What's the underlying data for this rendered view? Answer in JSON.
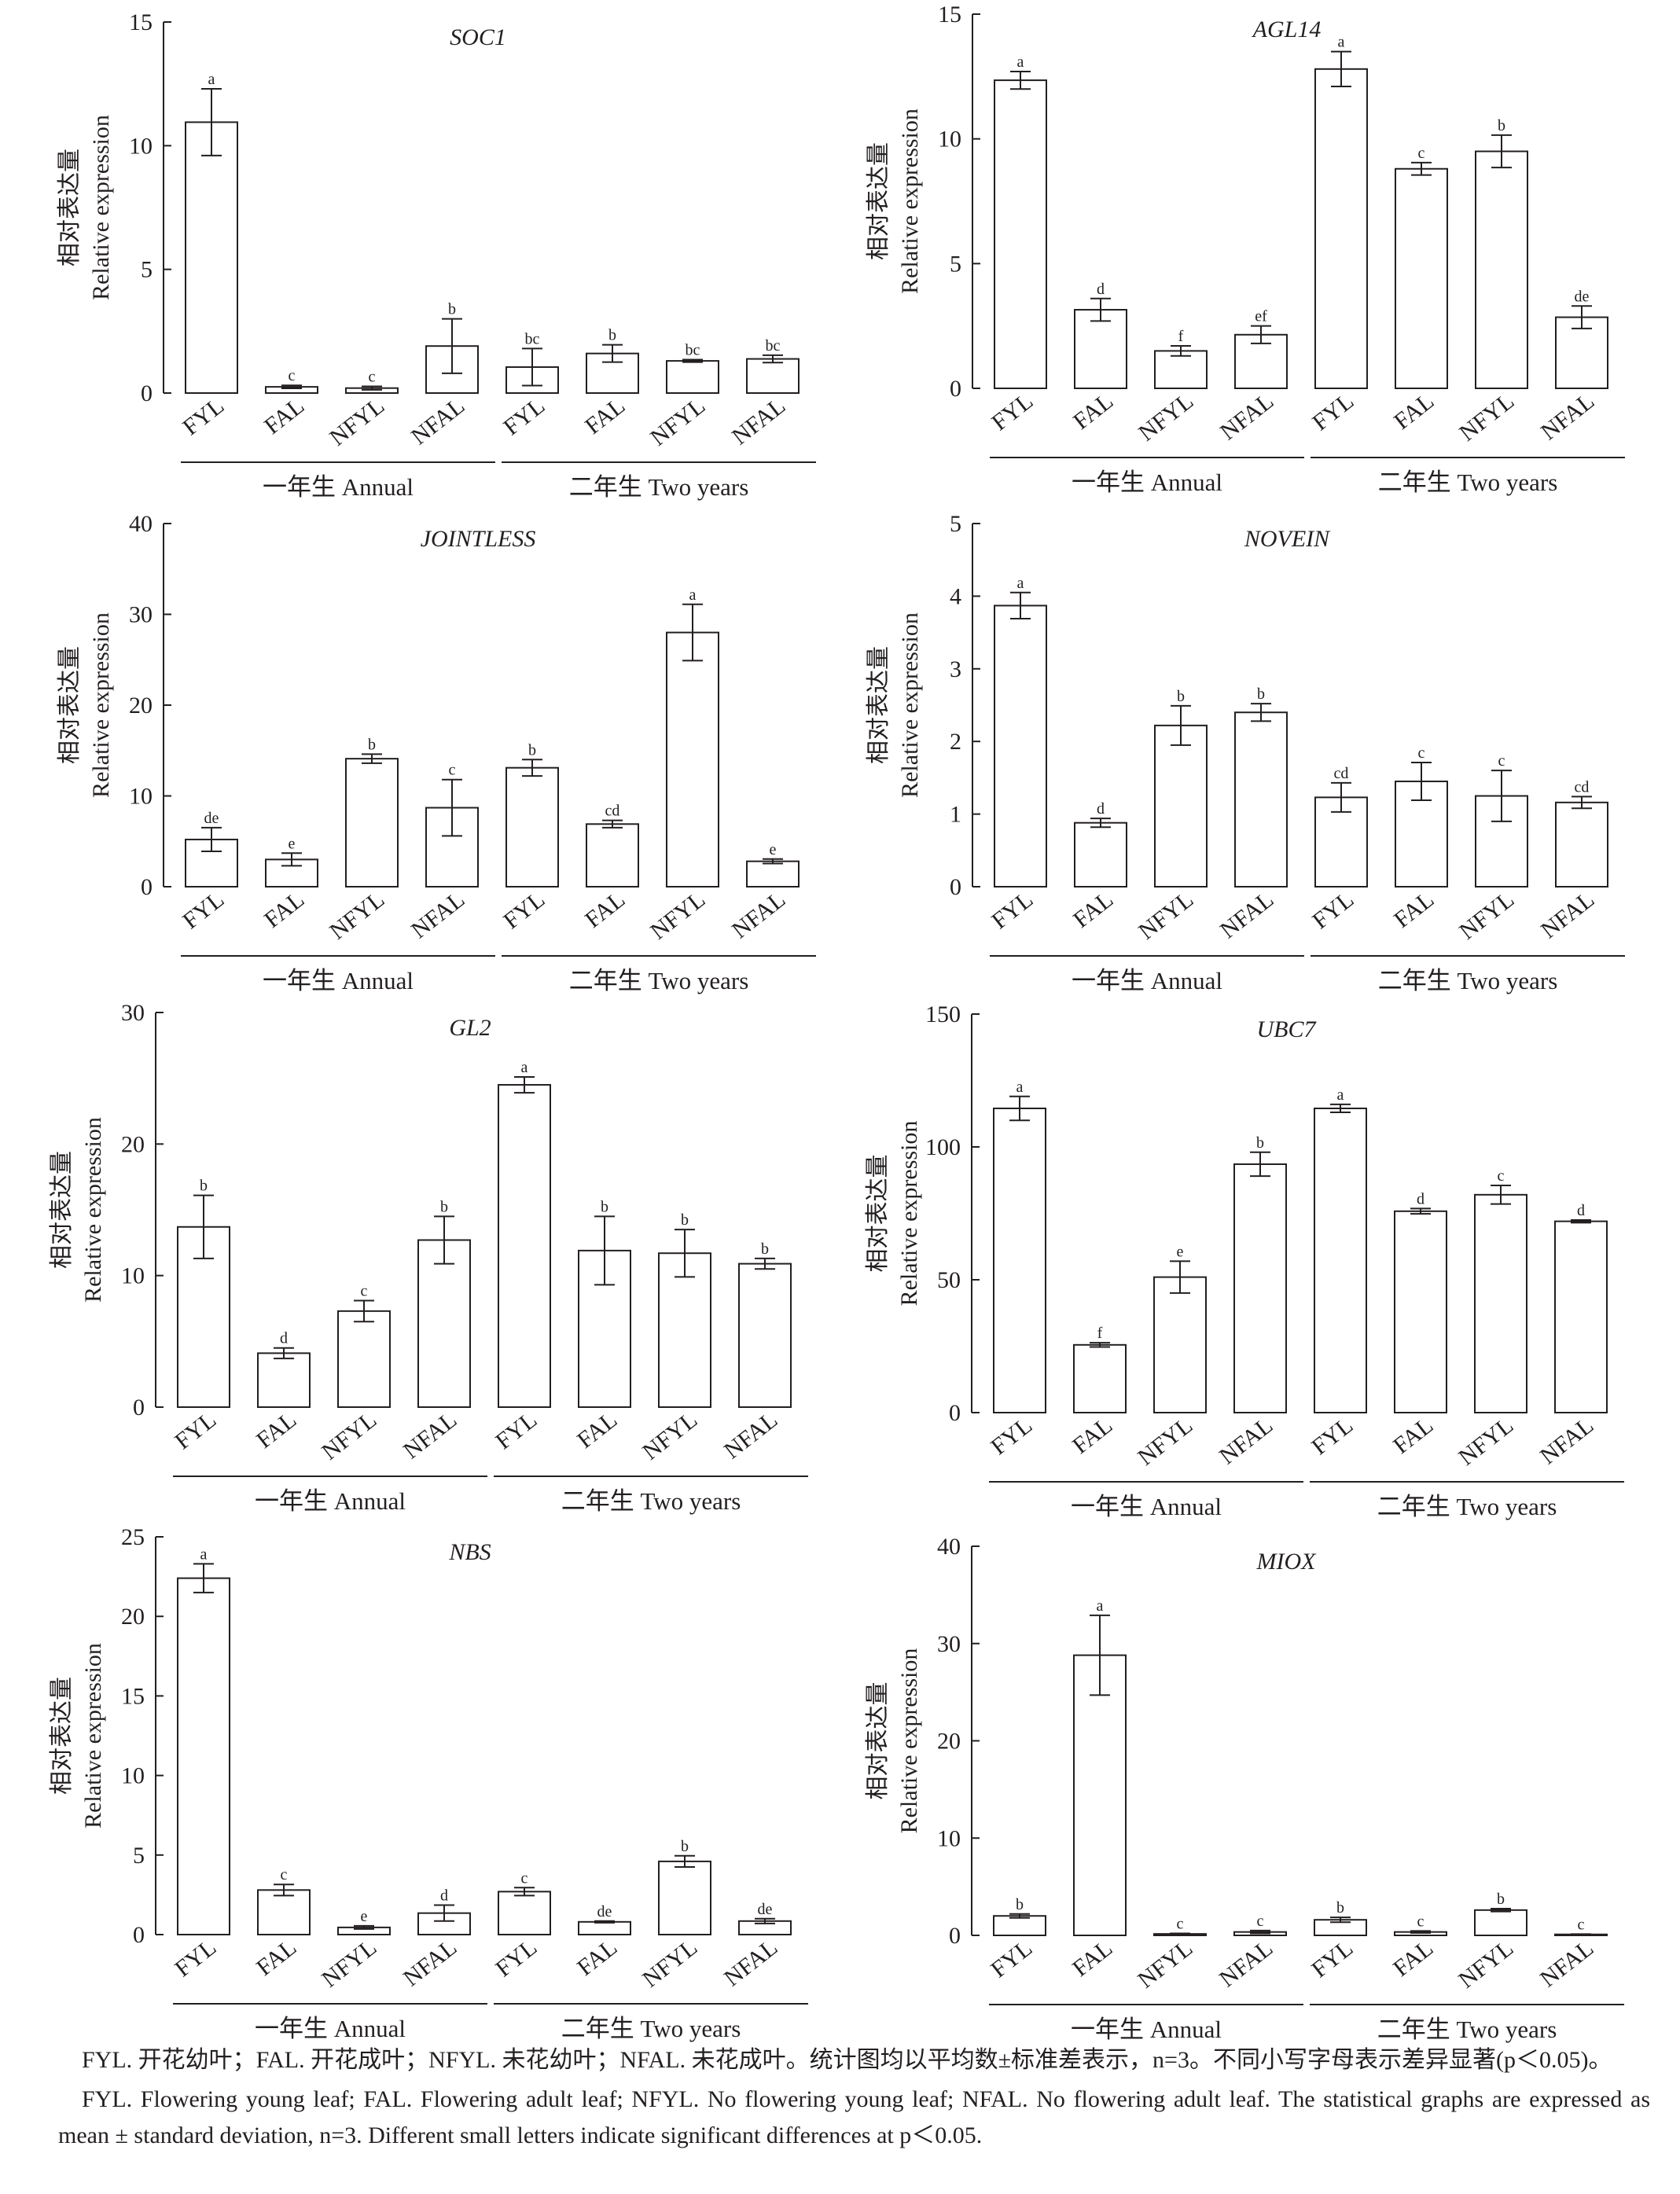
{
  "chart_data": [
    {
      "type": "bar",
      "title": "SOC1",
      "ylabel_zh": "相对表达量",
      "ylabel_en": "Relative expression",
      "ylim": [
        0,
        15
      ],
      "yticks": [
        0,
        5,
        10,
        15
      ],
      "categories": [
        "FYL",
        "FAL",
        "NFYL",
        "NFAL",
        "FYL",
        "FAL",
        "NFYL",
        "NFAL"
      ],
      "values": [
        10.95,
        0.25,
        0.2,
        1.9,
        1.05,
        1.6,
        1.3,
        1.38
      ],
      "errors": [
        1.35,
        0.06,
        0.07,
        1.1,
        0.75,
        0.35,
        0.05,
        0.15
      ],
      "letters": [
        "a",
        "c",
        "c",
        "b",
        "bc",
        "b",
        "bc",
        "bc"
      ],
      "groups": [
        {
          "label": "一年生 Annual"
        },
        {
          "label": "二年生 Two years"
        }
      ]
    },
    {
      "type": "bar",
      "title": "AGL14",
      "ylabel_zh": "相对表达量",
      "ylabel_en": "Relative expression",
      "ylim": [
        0,
        15
      ],
      "yticks": [
        0,
        5,
        10,
        15
      ],
      "categories": [
        "FYL",
        "FAL",
        "NFYL",
        "NFAL",
        "FYL",
        "FAL",
        "NFYL",
        "NFAL"
      ],
      "values": [
        12.35,
        3.15,
        1.5,
        2.15,
        12.8,
        8.8,
        9.5,
        2.85
      ],
      "errors": [
        0.35,
        0.45,
        0.2,
        0.35,
        0.7,
        0.25,
        0.65,
        0.45
      ],
      "letters": [
        "a",
        "d",
        "f",
        "ef",
        "a",
        "c",
        "b",
        "de"
      ],
      "groups": [
        {
          "label": "一年生 Annual"
        },
        {
          "label": "二年生 Two years"
        }
      ]
    },
    {
      "type": "bar",
      "title": "JOINTLESS",
      "ylabel_zh": "相对表达量",
      "ylabel_en": "Relative expression",
      "ylim": [
        0,
        40
      ],
      "yticks": [
        0,
        10,
        20,
        30,
        40
      ],
      "categories": [
        "FYL",
        "FAL",
        "NFYL",
        "NFAL",
        "FYL",
        "FAL",
        "NFYL",
        "NFAL"
      ],
      "values": [
        5.2,
        3.0,
        14.1,
        8.7,
        13.1,
        6.9,
        28.0,
        2.8
      ],
      "errors": [
        1.3,
        0.7,
        0.5,
        3.1,
        0.9,
        0.4,
        3.1,
        0.25
      ],
      "letters": [
        "de",
        "e",
        "b",
        "c",
        "b",
        "cd",
        "a",
        "e"
      ],
      "groups": [
        {
          "label": "一年生 Annual"
        },
        {
          "label": "二年生 Two years"
        }
      ]
    },
    {
      "type": "bar",
      "title": "NOVEIN",
      "ylabel_zh": "相对表达量",
      "ylabel_en": "Relative expression",
      "ylim": [
        0,
        5
      ],
      "yticks": [
        0,
        1,
        2,
        3,
        4,
        5
      ],
      "categories": [
        "FYL",
        "FAL",
        "NFYL",
        "NFAL",
        "FYL",
        "FAL",
        "NFYL",
        "NFAL"
      ],
      "values": [
        3.87,
        0.88,
        2.22,
        2.4,
        1.23,
        1.45,
        1.25,
        1.16
      ],
      "errors": [
        0.18,
        0.06,
        0.27,
        0.12,
        0.2,
        0.26,
        0.35,
        0.08
      ],
      "letters": [
        "a",
        "d",
        "b",
        "b",
        "cd",
        "c",
        "c",
        "cd"
      ],
      "groups": [
        {
          "label": "一年生 Annual"
        },
        {
          "label": "二年生 Two years"
        }
      ]
    },
    {
      "type": "bar",
      "title": "GL2",
      "ylabel_zh": "相对表达量",
      "ylabel_en": "Relative expression",
      "ylim": [
        0,
        30
      ],
      "yticks": [
        0,
        10,
        20,
        30
      ],
      "categories": [
        "FYL",
        "FAL",
        "NFYL",
        "NFAL",
        "FYL",
        "FAL",
        "NFYL",
        "NFAL"
      ],
      "values": [
        13.7,
        4.1,
        7.3,
        12.7,
        24.5,
        11.9,
        11.7,
        10.9
      ],
      "errors": [
        2.4,
        0.4,
        0.8,
        1.8,
        0.6,
        2.6,
        1.8,
        0.4
      ],
      "letters": [
        "b",
        "d",
        "c",
        "b",
        "a",
        "b",
        "b",
        "b"
      ],
      "groups": [
        {
          "label": "一年生 Annual"
        },
        {
          "label": "二年生 Two years"
        }
      ]
    },
    {
      "type": "bar",
      "title": "UBC7",
      "ylabel_zh": "相对表达量",
      "ylabel_en": "Relative expression",
      "ylim": [
        0,
        150
      ],
      "yticks": [
        0,
        50,
        100,
        150
      ],
      "categories": [
        "FYL",
        "FAL",
        "NFYL",
        "NFAL",
        "FYL",
        "FAL",
        "NFYL",
        "NFAL"
      ],
      "values": [
        114.5,
        25.5,
        51.0,
        93.5,
        114.5,
        75.8,
        82.0,
        72.0
      ],
      "errors": [
        4.5,
        0.8,
        6.0,
        4.5,
        1.5,
        1.0,
        3.5,
        0.5
      ],
      "letters": [
        "a",
        "f",
        "e",
        "b",
        "a",
        "d",
        "c",
        "d"
      ],
      "groups": [
        {
          "label": "一年生 Annual"
        },
        {
          "label": "二年生 Two years"
        }
      ]
    },
    {
      "type": "bar",
      "title": "NBS",
      "ylabel_zh": "相对表达量",
      "ylabel_en": "Relative expression",
      "ylim": [
        0,
        25
      ],
      "yticks": [
        0,
        5,
        10,
        15,
        20,
        25
      ],
      "categories": [
        "FYL",
        "FAL",
        "NFYL",
        "NFAL",
        "FYL",
        "FAL",
        "NFYL",
        "NFAL"
      ],
      "values": [
        22.4,
        2.8,
        0.45,
        1.35,
        2.7,
        0.8,
        4.6,
        0.85
      ],
      "errors": [
        0.9,
        0.35,
        0.1,
        0.5,
        0.25,
        0.05,
        0.35,
        0.15
      ],
      "letters": [
        "a",
        "c",
        "e",
        "d",
        "c",
        "de",
        "b",
        "de"
      ],
      "groups": [
        {
          "label": "一年生 Annual"
        },
        {
          "label": "二年生 Two years"
        }
      ]
    },
    {
      "type": "bar",
      "title": "MIOX",
      "ylabel_zh": "相对表达量",
      "ylabel_en": "Relative expression",
      "ylim": [
        0,
        40
      ],
      "yticks": [
        0,
        10,
        20,
        30,
        40
      ],
      "categories": [
        "FYL",
        "FAL",
        "NFYL",
        "NFAL",
        "FYL",
        "FAL",
        "NFYL",
        "NFAL"
      ],
      "values": [
        2.0,
        28.8,
        0.15,
        0.35,
        1.6,
        0.35,
        2.6,
        0.1
      ],
      "errors": [
        0.2,
        4.1,
        0.05,
        0.15,
        0.25,
        0.1,
        0.15,
        0.03
      ],
      "letters": [
        "b",
        "a",
        "c",
        "c",
        "b",
        "c",
        "b",
        "c"
      ],
      "groups": [
        {
          "label": "一年生 Annual"
        },
        {
          "label": "二年生 Two years"
        }
      ]
    }
  ],
  "caption": {
    "zh": "FYL. 开花幼叶；FAL. 开花成叶；NFYL. 未花幼叶；NFAL. 未花成叶。统计图均以平均数±标准差表示，n=3。不同小写字母表示差异显著(p＜0.05)。",
    "en": "FYL. Flowering young leaf; FAL. Flowering adult leaf; NFYL. No flowering young leaf; NFAL. No flowering adult leaf. The statistical graphs are expressed as mean ± standard deviation, n=3. Different small letters indicate significant differences at p＜0.05."
  }
}
